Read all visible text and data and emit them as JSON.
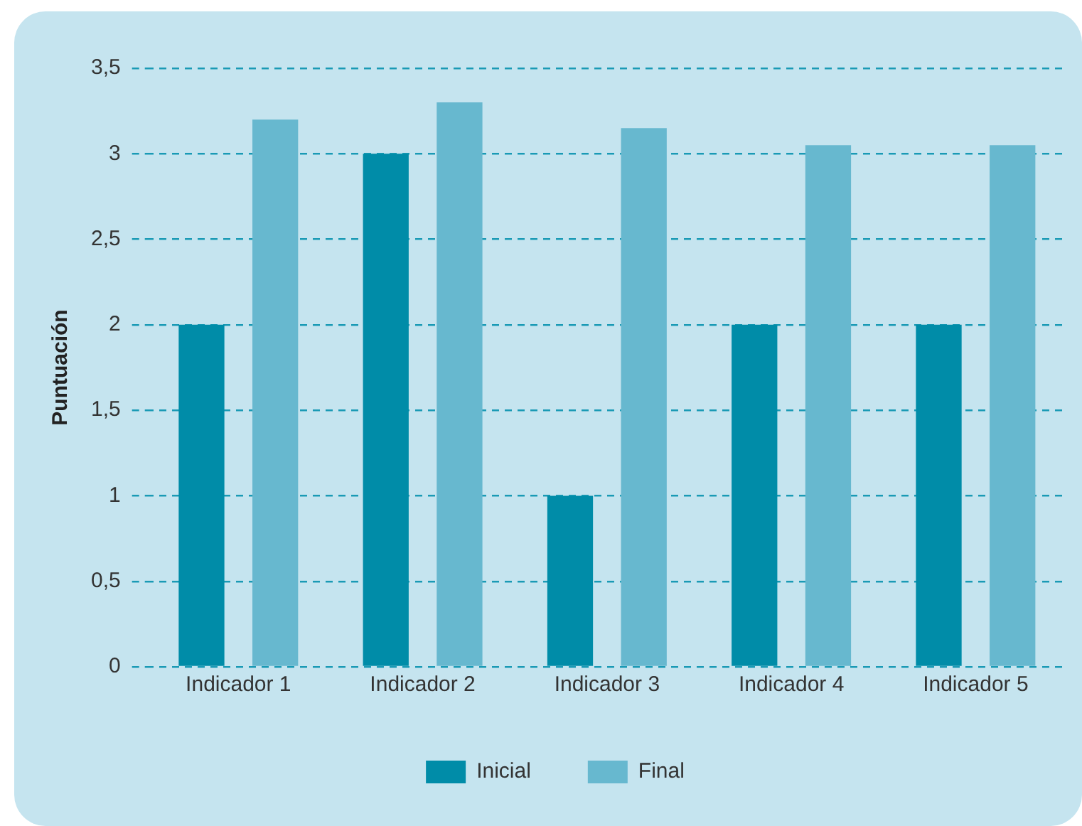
{
  "chart_data": {
    "type": "bar",
    "ylabel": "Puntuación",
    "categories": [
      "Indicador 1",
      "Indicador 2",
      "Indicador 3",
      "Indicador 4",
      "Indicador 5"
    ],
    "series": [
      {
        "name": "Inicial",
        "color": "#008ca8",
        "values": [
          2,
          3,
          1,
          2,
          2
        ]
      },
      {
        "name": "Final",
        "color": "#67b8cf",
        "values": [
          3.2,
          3.3,
          3.15,
          3.05,
          3.05
        ]
      }
    ],
    "ylim": [
      0,
      3.5
    ],
    "yticks": [
      0,
      {
        "value": 0.5,
        "label": "0,5"
      },
      1,
      {
        "value": 1.5,
        "label": "1,5"
      },
      2,
      {
        "value": 2.5,
        "label": "2,5"
      },
      3,
      {
        "value": 3.5,
        "label": "3,5"
      }
    ],
    "grid": "y",
    "legend": "bottom"
  }
}
